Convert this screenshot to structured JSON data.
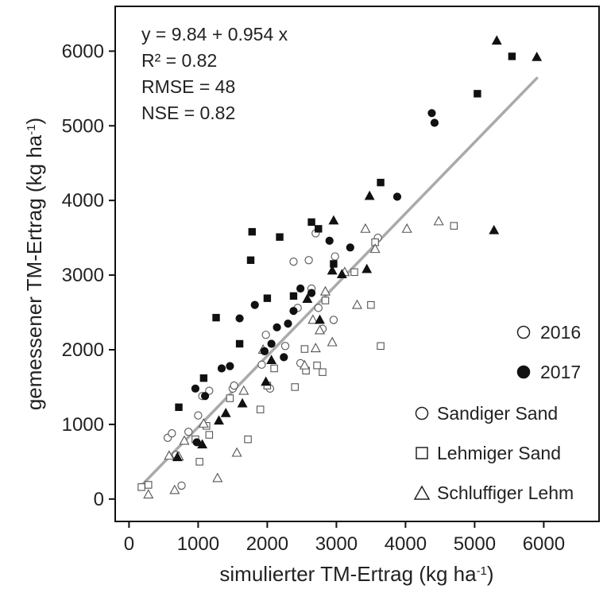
{
  "chart_data": {
    "type": "scatter",
    "xlabel": "simulierter TM-Ertrag (kg ha",
    "ylabel": "gemessener TM-Ertrag (kg ha",
    "xlabel_superscript": "-1",
    "ylabel_superscript": "-1",
    "xlabel_close": ")",
    "ylabel_close": ")",
    "xlim": [
      -200,
      6800
    ],
    "ylim": [
      -300,
      6600
    ],
    "xticks": [
      0,
      1000,
      2000,
      3000,
      4000,
      5000,
      6000
    ],
    "yticks": [
      0,
      1000,
      2000,
      3000,
      4000,
      5000,
      6000
    ],
    "xtick_labels": [
      "0",
      "1000",
      "2000",
      "3000",
      "4000",
      "5000",
      "6000"
    ],
    "ytick_labels": [
      "0",
      "1000",
      "2000",
      "3000",
      "4000",
      "5000",
      "6000"
    ],
    "grid": false,
    "legend_position": "bottom-right",
    "stats": {
      "equation": "y = 9.84 + 0.954 x",
      "r2": "R² =  0.82",
      "rmse": "RMSE = 48",
      "nse": "NSE =  0.82"
    },
    "regression": {
      "intercept": 9.84,
      "slope": 0.954,
      "x_range": [
        180,
        5900
      ],
      "color": "#aaaaaa"
    },
    "legend": {
      "years": [
        {
          "label": "2016",
          "fill": "open"
        },
        {
          "label": "2017",
          "fill": "filled"
        }
      ],
      "soils": [
        {
          "label": "Sandiger Sand",
          "marker": "circle"
        },
        {
          "label": "Lehmiger Sand",
          "marker": "square"
        },
        {
          "label": "Schluffiger Lehm",
          "marker": "triangle"
        }
      ]
    },
    "series": [
      {
        "year": "2016",
        "soil": "Sandiger Sand",
        "marker": "circle",
        "fill": "open",
        "points": [
          [
            560,
            820
          ],
          [
            620,
            880
          ],
          [
            680,
            590
          ],
          [
            760,
            180
          ],
          [
            860,
            900
          ],
          [
            1000,
            1120
          ],
          [
            1060,
            1380
          ],
          [
            1160,
            1450
          ],
          [
            1500,
            1480
          ],
          [
            1520,
            1520
          ],
          [
            1920,
            1800
          ],
          [
            1980,
            2200
          ],
          [
            2040,
            1480
          ],
          [
            2260,
            2050
          ],
          [
            2380,
            3180
          ],
          [
            2440,
            2560
          ],
          [
            2600,
            3200
          ],
          [
            2640,
            2820
          ],
          [
            2700,
            3560
          ],
          [
            2740,
            2560
          ],
          [
            2800,
            2280
          ],
          [
            2960,
            2400
          ],
          [
            2980,
            3250
          ],
          [
            3600,
            3500
          ],
          [
            2480,
            1820
          ]
        ]
      },
      {
        "year": "2016",
        "soil": "Lehmiger Sand",
        "marker": "square",
        "fill": "open",
        "points": [
          [
            180,
            160
          ],
          [
            280,
            190
          ],
          [
            960,
            800
          ],
          [
            1020,
            500
          ],
          [
            1120,
            980
          ],
          [
            1160,
            860
          ],
          [
            1460,
            1350
          ],
          [
            1720,
            800
          ],
          [
            1900,
            1200
          ],
          [
            2000,
            1520
          ],
          [
            2100,
            1750
          ],
          [
            2400,
            1500
          ],
          [
            2540,
            2010
          ],
          [
            2560,
            1720
          ],
          [
            2720,
            1790
          ],
          [
            2800,
            1700
          ],
          [
            2840,
            2660
          ],
          [
            3260,
            3040
          ],
          [
            3500,
            2600
          ],
          [
            3560,
            3440
          ],
          [
            3640,
            2050
          ],
          [
            4700,
            3660
          ]
        ]
      },
      {
        "year": "2016",
        "soil": "Schluffiger Lehm",
        "marker": "triangle",
        "fill": "open",
        "points": [
          [
            280,
            60
          ],
          [
            580,
            580
          ],
          [
            660,
            120
          ],
          [
            720,
            570
          ],
          [
            800,
            780
          ],
          [
            1080,
            1010
          ],
          [
            1280,
            280
          ],
          [
            1560,
            620
          ],
          [
            1660,
            1450
          ],
          [
            1940,
            2000
          ],
          [
            2540,
            1790
          ],
          [
            2660,
            2400
          ],
          [
            2700,
            2020
          ],
          [
            2760,
            2260
          ],
          [
            2840,
            2780
          ],
          [
            2940,
            2100
          ],
          [
            3120,
            3040
          ],
          [
            3300,
            2600
          ],
          [
            3420,
            3620
          ],
          [
            3560,
            3350
          ],
          [
            4020,
            3620
          ],
          [
            4480,
            3720
          ]
        ]
      },
      {
        "year": "2017",
        "soil": "Sandiger Sand",
        "marker": "circle",
        "fill": "filled",
        "points": [
          [
            960,
            1480
          ],
          [
            1100,
            1380
          ],
          [
            1460,
            1780
          ],
          [
            1600,
            2420
          ],
          [
            1820,
            2600
          ],
          [
            1960,
            1980
          ],
          [
            2060,
            2080
          ],
          [
            2140,
            2300
          ],
          [
            2300,
            2350
          ],
          [
            2380,
            2520
          ],
          [
            2480,
            2820
          ],
          [
            2640,
            2760
          ],
          [
            2900,
            3460
          ],
          [
            3200,
            3370
          ],
          [
            3880,
            4050
          ],
          [
            4380,
            5170
          ],
          [
            4420,
            5040
          ],
          [
            1340,
            1750
          ],
          [
            980,
            760
          ],
          [
            2240,
            1900
          ]
        ]
      },
      {
        "year": "2017",
        "soil": "Lehmiger Sand",
        "marker": "square",
        "fill": "filled",
        "points": [
          [
            720,
            1230
          ],
          [
            1080,
            1620
          ],
          [
            1260,
            2430
          ],
          [
            1600,
            2080
          ],
          [
            1760,
            3200
          ],
          [
            1780,
            3580
          ],
          [
            2000,
            2690
          ],
          [
            2180,
            3510
          ],
          [
            2380,
            2720
          ],
          [
            2640,
            3710
          ],
          [
            2740,
            3620
          ],
          [
            2960,
            3150
          ],
          [
            3640,
            4240
          ],
          [
            5040,
            5430
          ],
          [
            5540,
            5930
          ]
        ]
      },
      {
        "year": "2017",
        "soil": "Schluffiger Lehm",
        "marker": "triangle",
        "fill": "filled",
        "points": [
          [
            700,
            560
          ],
          [
            1060,
            730
          ],
          [
            1300,
            1050
          ],
          [
            1400,
            1150
          ],
          [
            1640,
            1280
          ],
          [
            1980,
            1570
          ],
          [
            2060,
            1860
          ],
          [
            2580,
            2680
          ],
          [
            2760,
            2400
          ],
          [
            2940,
            3060
          ],
          [
            2960,
            3730
          ],
          [
            3080,
            3010
          ],
          [
            3440,
            3080
          ],
          [
            3480,
            4060
          ],
          [
            5280,
            3600
          ],
          [
            5320,
            6140
          ],
          [
            5900,
            5920
          ]
        ]
      }
    ]
  }
}
